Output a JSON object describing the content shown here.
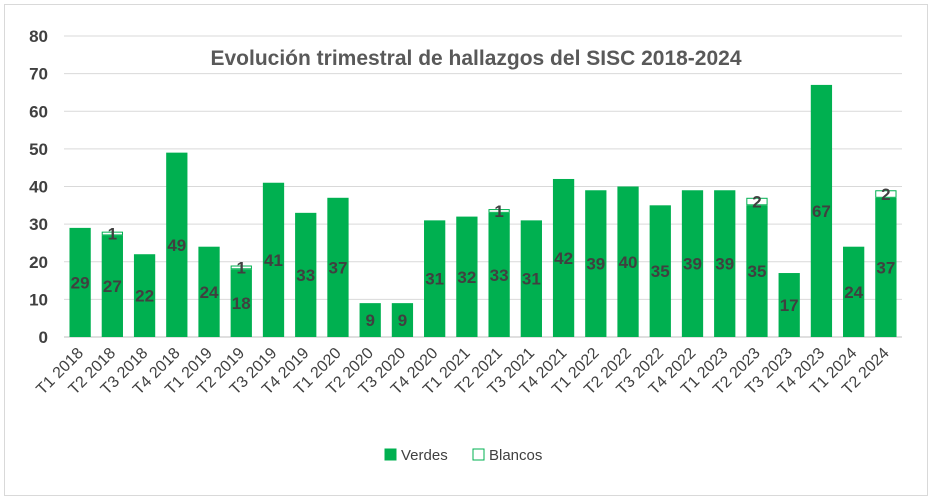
{
  "chart_data": {
    "type": "bar",
    "stacked": true,
    "title": "Evolución trimestral de hallazgos del SISC 2018-2024",
    "xlabel": "",
    "ylabel": "",
    "ylim": [
      0,
      80
    ],
    "yticks": [
      0,
      10,
      20,
      30,
      40,
      50,
      60,
      70,
      80
    ],
    "grid": true,
    "legend_position": "bottom",
    "categories": [
      "T1 2018",
      "T2 2018",
      "T3 2018",
      "T4 2018",
      "T1 2019",
      "T2 2019",
      "T3 2019",
      "T4 2019",
      "T1 2020",
      "T2 2020",
      "T3 2020",
      "T4 2020",
      "T1 2021",
      "T2 2021",
      "T3 2021",
      "T4 2021",
      "T1 2022",
      "T2 2022",
      "T3 2022",
      "T4 2022",
      "T1 2023",
      "T2 2023",
      "T3 2023",
      "T4 2023",
      "T1 2024",
      "T2 2024"
    ],
    "series": [
      {
        "name": "Verdes",
        "color": "#00b050",
        "values": [
          29,
          27,
          22,
          49,
          24,
          18,
          41,
          33,
          37,
          9,
          9,
          31,
          32,
          33,
          31,
          42,
          39,
          40,
          35,
          39,
          39,
          35,
          17,
          67,
          24,
          37
        ]
      },
      {
        "name": "Blancos",
        "color": "#ffffff",
        "values": [
          null,
          1,
          null,
          null,
          null,
          1,
          null,
          null,
          null,
          null,
          null,
          null,
          null,
          1,
          null,
          null,
          null,
          null,
          null,
          null,
          null,
          2,
          null,
          null,
          null,
          2
        ]
      }
    ]
  }
}
